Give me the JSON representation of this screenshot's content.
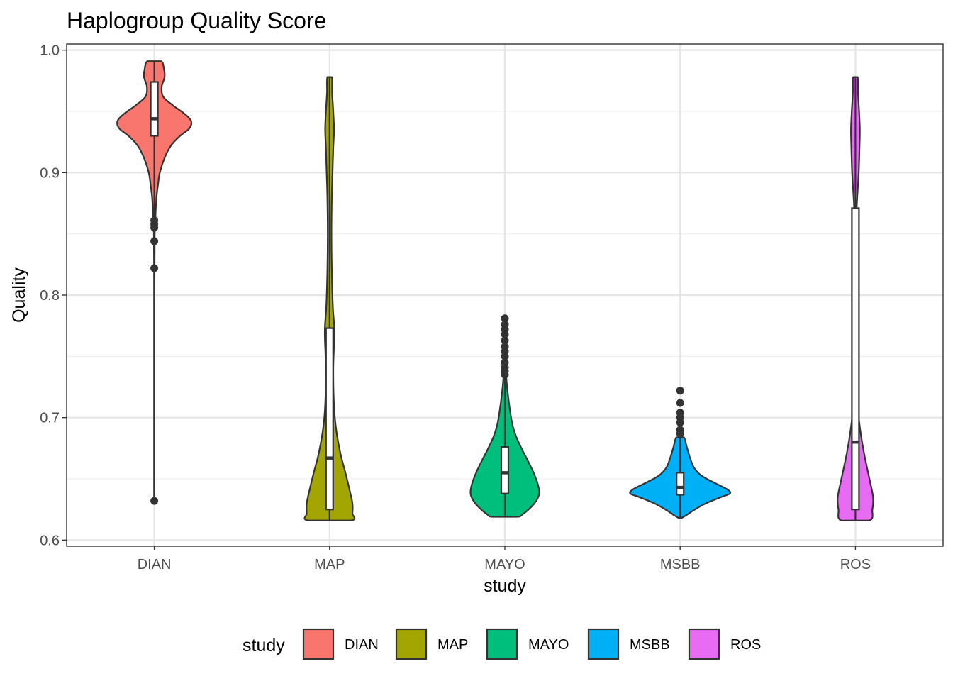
{
  "chart_data": {
    "type": "violin",
    "title": "Haplogroup Quality Score",
    "xlabel": "study",
    "ylabel": "Quality",
    "ylim": [
      0.595,
      1.005
    ],
    "yticks": [
      0.6,
      0.7,
      0.8,
      0.9,
      1.0
    ],
    "ytick_labels": [
      "0.6",
      "0.7",
      "0.8",
      "0.9",
      "1.0"
    ],
    "grid": true,
    "legend": {
      "title": "study",
      "position": "bottom"
    },
    "categories": [
      "DIAN",
      "MAP",
      "MAYO",
      "MSBB",
      "ROS"
    ],
    "series": [
      {
        "name": "DIAN",
        "color": "#F8766D",
        "min": 0.632,
        "max": 0.991,
        "box": {
          "q1": 0.93,
          "median": 0.944,
          "q3": 0.974,
          "whisker_low": 0.632,
          "whisker_high": 0.991
        },
        "outliers": [
          0.861,
          0.858,
          0.855,
          0.844,
          0.822,
          0.632
        ],
        "density": [
          [
            0.991,
            0.18
          ],
          [
            0.985,
            0.26
          ],
          [
            0.978,
            0.28
          ],
          [
            0.97,
            0.2
          ],
          [
            0.962,
            0.24
          ],
          [
            0.955,
            0.5
          ],
          [
            0.948,
            0.82
          ],
          [
            0.942,
            1.0
          ],
          [
            0.936,
            0.95
          ],
          [
            0.93,
            0.7
          ],
          [
            0.922,
            0.45
          ],
          [
            0.912,
            0.28
          ],
          [
            0.9,
            0.15
          ],
          [
            0.89,
            0.1
          ],
          [
            0.88,
            0.06
          ],
          [
            0.87,
            0.04
          ],
          [
            0.86,
            0.025
          ],
          [
            0.85,
            0.012
          ],
          [
            0.83,
            0.008
          ],
          [
            0.8,
            0.006
          ],
          [
            0.7,
            0.006
          ],
          [
            0.632,
            0.006
          ]
        ]
      },
      {
        "name": "MAP",
        "color": "#A3A500",
        "min": 0.616,
        "max": 0.978,
        "box": {
          "q1": 0.625,
          "median": 0.667,
          "q3": 0.773,
          "whisker_low": 0.616,
          "whisker_high": 0.978
        },
        "outliers": [],
        "density": [
          [
            0.978,
            0.06
          ],
          [
            0.965,
            0.07
          ],
          [
            0.95,
            0.1
          ],
          [
            0.935,
            0.12
          ],
          [
            0.92,
            0.1
          ],
          [
            0.9,
            0.08
          ],
          [
            0.88,
            0.06
          ],
          [
            0.85,
            0.05
          ],
          [
            0.82,
            0.06
          ],
          [
            0.79,
            0.09
          ],
          [
            0.77,
            0.13
          ],
          [
            0.74,
            0.1
          ],
          [
            0.71,
            0.12
          ],
          [
            0.69,
            0.18
          ],
          [
            0.67,
            0.3
          ],
          [
            0.655,
            0.43
          ],
          [
            0.64,
            0.55
          ],
          [
            0.63,
            0.62
          ],
          [
            0.622,
            0.62
          ],
          [
            0.616,
            0.58
          ]
        ]
      },
      {
        "name": "MAYO",
        "color": "#00BF7D",
        "min": 0.619,
        "max": 0.781,
        "box": {
          "q1": 0.638,
          "median": 0.655,
          "q3": 0.676,
          "whisker_low": 0.619,
          "whisker_high": 0.734
        },
        "outliers": [
          0.781,
          0.776,
          0.772,
          0.768,
          0.763,
          0.758,
          0.754,
          0.75,
          0.745,
          0.741,
          0.738,
          0.735
        ],
        "density": [
          [
            0.734,
            0.03
          ],
          [
            0.725,
            0.06
          ],
          [
            0.71,
            0.12
          ],
          [
            0.695,
            0.2
          ],
          [
            0.685,
            0.3
          ],
          [
            0.675,
            0.45
          ],
          [
            0.665,
            0.62
          ],
          [
            0.655,
            0.78
          ],
          [
            0.645,
            0.9
          ],
          [
            0.638,
            0.93
          ],
          [
            0.632,
            0.85
          ],
          [
            0.626,
            0.68
          ],
          [
            0.621,
            0.48
          ],
          [
            0.619,
            0.33
          ]
        ]
      },
      {
        "name": "MSBB",
        "color": "#00B0F6",
        "min": 0.618,
        "max": 0.722,
        "box": {
          "q1": 0.637,
          "median": 0.643,
          "q3": 0.655,
          "whisker_low": 0.618,
          "whisker_high": 0.684
        },
        "outliers": [
          0.722,
          0.712,
          0.704,
          0.7,
          0.696,
          0.69,
          0.687
        ],
        "density": [
          [
            0.684,
            0.1
          ],
          [
            0.676,
            0.18
          ],
          [
            0.668,
            0.26
          ],
          [
            0.66,
            0.36
          ],
          [
            0.654,
            0.52
          ],
          [
            0.65,
            0.72
          ],
          [
            0.645,
            1.05
          ],
          [
            0.641,
            1.3
          ],
          [
            0.638,
            1.35
          ],
          [
            0.635,
            1.1
          ],
          [
            0.63,
            0.7
          ],
          [
            0.625,
            0.4
          ],
          [
            0.62,
            0.15
          ],
          [
            0.618,
            0.03
          ]
        ]
      },
      {
        "name": "ROS",
        "color": "#E76BF3",
        "min": 0.616,
        "max": 0.978,
        "box": {
          "q1": 0.625,
          "median": 0.68,
          "q3": 0.871,
          "whisker_low": 0.616,
          "whisker_high": 0.978
        },
        "outliers": [],
        "density": [
          [
            0.978,
            0.06
          ],
          [
            0.965,
            0.07
          ],
          [
            0.95,
            0.1
          ],
          [
            0.935,
            0.12
          ],
          [
            0.92,
            0.11
          ],
          [
            0.9,
            0.09
          ],
          [
            0.88,
            0.05
          ],
          [
            0.86,
            0.02
          ],
          [
            0.82,
            0.012
          ],
          [
            0.78,
            0.015
          ],
          [
            0.74,
            0.03
          ],
          [
            0.71,
            0.06
          ],
          [
            0.69,
            0.13
          ],
          [
            0.67,
            0.24
          ],
          [
            0.65,
            0.38
          ],
          [
            0.635,
            0.48
          ],
          [
            0.625,
            0.46
          ],
          [
            0.616,
            0.38
          ]
        ]
      }
    ]
  }
}
